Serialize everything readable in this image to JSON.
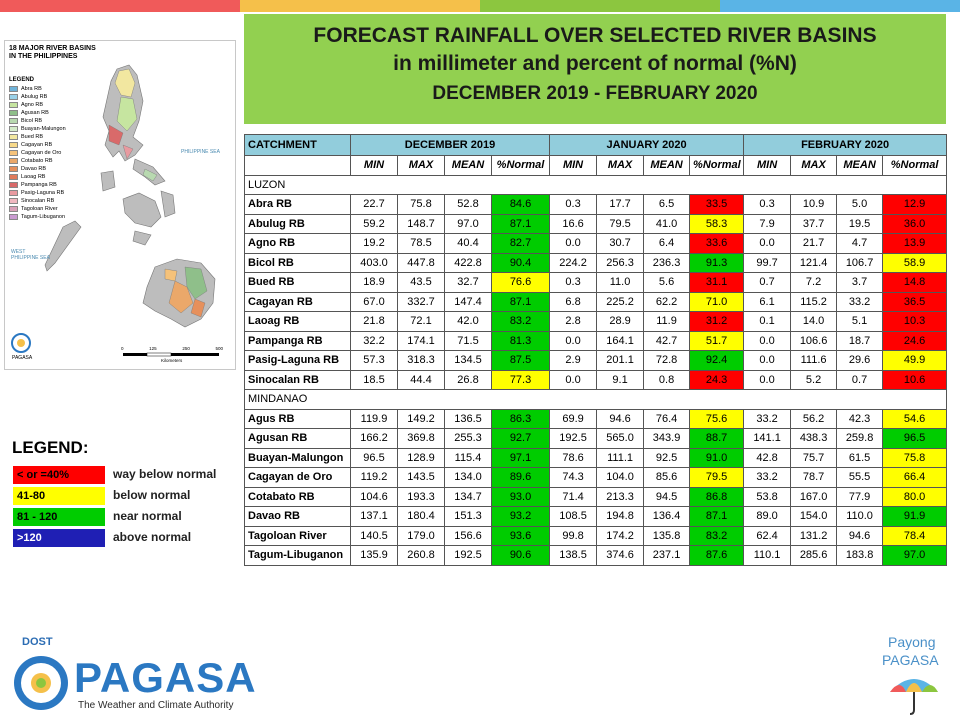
{
  "title": {
    "line1": "FORECAST RAINFALL OVER SELECTED RIVER BASINS",
    "line2": "in millimeter  and percent of normal (%N)",
    "line3": "DECEMBER 2019 - FEBRUARY 2020"
  },
  "map": {
    "title_line1": "18 MAJOR RIVER BASINS",
    "title_line2": "IN THE PHILIPPINES",
    "legend_heading": "LEGEND",
    "legend": [
      {
        "label": "Abra RB",
        "color": "#6fb3d9"
      },
      {
        "label": "Abulug RB",
        "color": "#9ad1e8"
      },
      {
        "label": "Agno RB",
        "color": "#c6e5a0"
      },
      {
        "label": "Agusan RB",
        "color": "#8fbf8a"
      },
      {
        "label": "Bicol RB",
        "color": "#b8d9b0"
      },
      {
        "label": "Buayan-Malungon",
        "color": "#d4ecc9"
      },
      {
        "label": "Bued RB",
        "color": "#f2e7a0"
      },
      {
        "label": "Cagayan RB",
        "color": "#f7d98a"
      },
      {
        "label": "Cagayan de Oro",
        "color": "#f5c27a"
      },
      {
        "label": "Cotabato RB",
        "color": "#eba86a"
      },
      {
        "label": "Davao RB",
        "color": "#e6905c"
      },
      {
        "label": "Laoag RB",
        "color": "#e07a5a"
      },
      {
        "label": "Pampanga RB",
        "color": "#d96a6a"
      },
      {
        "label": "Pasig-Laguna RB",
        "color": "#e89aa0"
      },
      {
        "label": "Sinocalan RB",
        "color": "#f0b8c0"
      },
      {
        "label": "Tagoloan River",
        "color": "#d9a0b8"
      },
      {
        "label": "Tagum-Libuganon",
        "color": "#c99ad0"
      }
    ],
    "sea_east": "PHILIPPINE SEA",
    "sea_west": "WEST PHILIPPINE SEA",
    "agency": "PAGASA",
    "scale": [
      "0",
      "125",
      "250",
      "500"
    ],
    "scale_unit": "Kilometers"
  },
  "table": {
    "catchment_header": "CATCHMENT",
    "months": [
      "DECEMBER 2019",
      "JANUARY 2020",
      "FEBRUARY 2020"
    ],
    "subheaders": [
      "MIN",
      "MAX",
      "MEAN",
      "%Normal"
    ],
    "regions": [
      {
        "name": "LUZON",
        "rows": [
          {
            "name": "Abra RB",
            "v": [
              [
                22.7,
                75.8,
                52.8,
                84.6
              ],
              [
                0.3,
                17.7,
                6.5,
                33.5
              ],
              [
                0.3,
                10.9,
                5.0,
                12.9
              ]
            ]
          },
          {
            "name": "Abulug RB",
            "v": [
              [
                59.2,
                148.7,
                97.0,
                87.1
              ],
              [
                16.6,
                79.5,
                41.0,
                58.3
              ],
              [
                7.9,
                37.7,
                19.5,
                36.0
              ]
            ]
          },
          {
            "name": "Agno RB",
            "v": [
              [
                19.2,
                78.5,
                40.4,
                82.7
              ],
              [
                0.0,
                30.7,
                6.4,
                33.6
              ],
              [
                0.0,
                21.7,
                4.7,
                13.9
              ]
            ]
          },
          {
            "name": "Bicol RB",
            "v": [
              [
                403.0,
                447.8,
                422.8,
                90.4
              ],
              [
                224.2,
                256.3,
                236.3,
                91.3
              ],
              [
                99.7,
                121.4,
                106.7,
                58.9
              ]
            ]
          },
          {
            "name": "Bued RB",
            "v": [
              [
                18.9,
                43.5,
                32.7,
                76.6
              ],
              [
                0.3,
                11.0,
                5.6,
                31.1
              ],
              [
                0.7,
                7.2,
                3.7,
                14.8
              ]
            ]
          },
          {
            "name": "Cagayan RB",
            "v": [
              [
                67.0,
                332.7,
                147.4,
                87.1
              ],
              [
                6.8,
                225.2,
                62.2,
                71.0
              ],
              [
                6.1,
                115.2,
                33.2,
                36.5
              ]
            ]
          },
          {
            "name": "Laoag RB",
            "v": [
              [
                21.8,
                72.1,
                42.0,
                83.2
              ],
              [
                2.8,
                28.9,
                11.9,
                31.2
              ],
              [
                0.1,
                14.0,
                5.1,
                10.3
              ]
            ]
          },
          {
            "name": "Pampanga RB",
            "v": [
              [
                32.2,
                174.1,
                71.5,
                81.3
              ],
              [
                0.0,
                164.1,
                42.7,
                51.7
              ],
              [
                0.0,
                106.6,
                18.7,
                24.6
              ]
            ]
          },
          {
            "name": "Pasig-Laguna RB",
            "v": [
              [
                57.3,
                318.3,
                134.5,
                87.5
              ],
              [
                2.9,
                201.1,
                72.8,
                92.4
              ],
              [
                0.0,
                111.6,
                29.6,
                49.9
              ]
            ]
          },
          {
            "name": "Sinocalan RB",
            "v": [
              [
                18.5,
                44.4,
                26.8,
                77.3
              ],
              [
                0.0,
                9.1,
                0.8,
                24.3
              ],
              [
                0.0,
                5.2,
                0.7,
                10.6
              ]
            ]
          }
        ]
      },
      {
        "name": "MINDANAO",
        "rows": [
          {
            "name": "Agus RB",
            "v": [
              [
                119.9,
                149.2,
                136.5,
                86.3
              ],
              [
                69.9,
                94.6,
                76.4,
                75.6
              ],
              [
                33.2,
                56.2,
                42.3,
                54.6
              ]
            ]
          },
          {
            "name": "Agusan RB",
            "v": [
              [
                166.2,
                369.8,
                255.3,
                92.7
              ],
              [
                192.5,
                565.0,
                343.9,
                88.7
              ],
              [
                141.1,
                438.3,
                259.8,
                96.5
              ]
            ]
          },
          {
            "name": "Buayan-Malungon",
            "v": [
              [
                96.5,
                128.9,
                115.4,
                97.1
              ],
              [
                78.6,
                111.1,
                92.5,
                91.0
              ],
              [
                42.8,
                75.7,
                61.5,
                75.8
              ]
            ]
          },
          {
            "name": "Cagayan de Oro",
            "v": [
              [
                119.2,
                143.5,
                134.0,
                89.6
              ],
              [
                74.3,
                104.0,
                85.6,
                79.5
              ],
              [
                33.2,
                78.7,
                55.5,
                66.4
              ]
            ]
          },
          {
            "name": "Cotabato RB",
            "v": [
              [
                104.6,
                193.3,
                134.7,
                93.0
              ],
              [
                71.4,
                213.3,
                94.5,
                86.8
              ],
              [
                53.8,
                167.0,
                77.9,
                80.0
              ]
            ]
          },
          {
            "name": "Davao RB",
            "v": [
              [
                137.1,
                180.4,
                151.3,
                93.2
              ],
              [
                108.5,
                194.8,
                136.4,
                87.1
              ],
              [
                89.0,
                154.0,
                110.0,
                91.9
              ]
            ]
          },
          {
            "name": "Tagoloan River",
            "v": [
              [
                140.5,
                179.0,
                156.6,
                93.6
              ],
              [
                99.8,
                174.2,
                135.8,
                83.2
              ],
              [
                62.4,
                131.2,
                94.6,
                78.4
              ]
            ]
          },
          {
            "name": "Tagum-Libuganon",
            "v": [
              [
                135.9,
                260.8,
                192.5,
                90.6
              ],
              [
                138.5,
                374.6,
                237.1,
                87.6
              ],
              [
                110.1,
                285.6,
                183.8,
                97.0
              ]
            ]
          }
        ]
      }
    ]
  },
  "legend": {
    "title": "LEGEND:",
    "items": [
      {
        "range": "< or =40%",
        "desc": "way below normal",
        "color": "#ff0000"
      },
      {
        "range": "41-80",
        "desc": "below normal",
        "color": "#ffff00"
      },
      {
        "range": "81 - 120",
        "desc": "near normal",
        "color": "#00cc00"
      },
      {
        "range": ">120",
        "desc": "above normal",
        "color": "#1f1fb4"
      }
    ]
  },
  "logo": {
    "dost": "DOST",
    "name": "PAGASA",
    "tagline": "The Weather and Climate Authority"
  },
  "payong": {
    "line1": "Payong",
    "line2": "PAGASA"
  },
  "topbar_colors": [
    "#f05a5a",
    "#f5c04a",
    "#8cc63f",
    "#5ab4e6"
  ]
}
